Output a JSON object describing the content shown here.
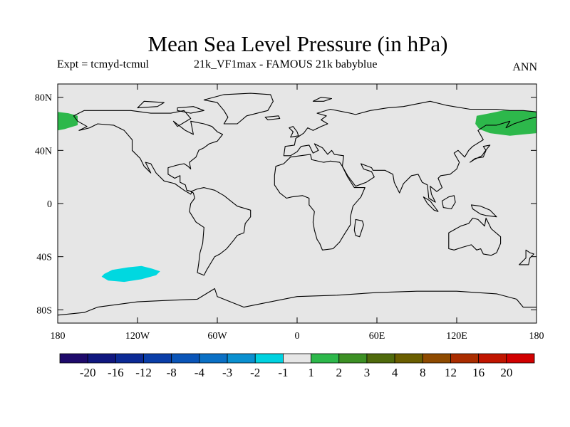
{
  "title": "Mean Sea Level Pressure (in hPa)",
  "subtitle_left": "Expt = tcmyd-tcmul",
  "subtitle_center": "21k_VF1max - FAMOUS 21k babyblue",
  "subtitle_right": "ANN",
  "chart_data": {
    "type": "map",
    "projection": "cylindrical-equidistant",
    "lon_range": [
      -180,
      180
    ],
    "lat_range": [
      -90,
      90
    ],
    "y_ticks": [
      {
        "lat": 80,
        "label": "80N"
      },
      {
        "lat": 40,
        "label": "40N"
      },
      {
        "lat": 0,
        "label": "0"
      },
      {
        "lat": -40,
        "label": "40S"
      },
      {
        "lat": -80,
        "label": "80S"
      }
    ],
    "x_ticks": [
      {
        "lon": -180,
        "label": "180"
      },
      {
        "lon": -120,
        "label": "120W"
      },
      {
        "lon": -60,
        "label": "60W"
      },
      {
        "lon": 0,
        "label": "0"
      },
      {
        "lon": 60,
        "label": "60E"
      },
      {
        "lon": 120,
        "label": "120E"
      },
      {
        "lon": 180,
        "label": "180"
      }
    ],
    "background_color": "#e6e6e6",
    "anomaly_regions": [
      {
        "name": "north-pacific-positive-west",
        "range": "1 to 2",
        "color": "#2db84b",
        "lonlat": [
          [
            -180,
            69
          ],
          [
            -172,
            68
          ],
          [
            -165,
            66
          ],
          [
            -165,
            59
          ],
          [
            -175,
            56
          ],
          [
            -180,
            55
          ]
        ]
      },
      {
        "name": "north-pacific-positive-east",
        "range": "1 to 2",
        "color": "#2db84b",
        "lonlat": [
          [
            180,
            69
          ],
          [
            170,
            70
          ],
          [
            155,
            70
          ],
          [
            145,
            68
          ],
          [
            135,
            66
          ],
          [
            134,
            60
          ],
          [
            137,
            56
          ],
          [
            145,
            53
          ],
          [
            160,
            51
          ],
          [
            170,
            52
          ],
          [
            180,
            53
          ]
        ]
      },
      {
        "name": "south-pacific-negative",
        "range": "-2 to -1",
        "color": "#00d8e0",
        "lonlat": [
          [
            -145,
            -53
          ],
          [
            -139,
            -50
          ],
          [
            -127,
            -48
          ],
          [
            -117,
            -47
          ],
          [
            -109,
            -49
          ],
          [
            -103,
            -51
          ],
          [
            -106,
            -54
          ],
          [
            -117,
            -57
          ],
          [
            -130,
            -59
          ],
          [
            -142,
            -58
          ],
          [
            -147,
            -55
          ]
        ]
      }
    ],
    "colorbar": {
      "colors": [
        "#1e0a6b",
        "#10177f",
        "#0b2a95",
        "#0a3ea8",
        "#0a55b8",
        "#0a70c5",
        "#0a90d0",
        "#00d2e0",
        "#e6e6e6",
        "#2db84b",
        "#3c9024",
        "#4f6a0c",
        "#6a5e00",
        "#8e4a00",
        "#aa2d00",
        "#c11500",
        "#d10000"
      ],
      "labels": [
        "-20",
        "-16",
        "-12",
        "-8",
        "-4",
        "-3",
        "-2",
        "-1",
        "1",
        "2",
        "3",
        "4",
        "8",
        "12",
        "16",
        "20"
      ]
    }
  }
}
